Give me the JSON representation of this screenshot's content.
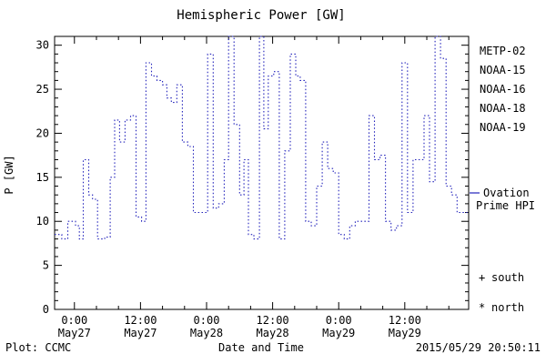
{
  "header": {
    "title": "Hemispheric Power [GW]"
  },
  "footer": {
    "plot_credit": "Plot: CCMC",
    "timestamp": "2015/05/29 20:50:11"
  },
  "chart_data": {
    "type": "line",
    "subtype": "step",
    "title": "Hemispheric Power [GW]",
    "xlabel": "Date and Time",
    "ylabel": "P [GW]",
    "ylim": [
      0,
      31
    ],
    "y_major_ticks": [
      0,
      5,
      10,
      15,
      20,
      25,
      30
    ],
    "y_minor_step": 1,
    "x_range_hours": [
      -3.6,
      71.6
    ],
    "x_major_ticks": [
      {
        "t": 0,
        "time": "0:00",
        "date": "May27"
      },
      {
        "t": 12,
        "time": "12:00",
        "date": "May27"
      },
      {
        "t": 24,
        "time": "0:00",
        "date": "May28"
      },
      {
        "t": 36,
        "time": "12:00",
        "date": "May28"
      },
      {
        "t": 48,
        "time": "0:00",
        "date": "May29"
      },
      {
        "t": 60,
        "time": "12:00",
        "date": "May29"
      }
    ],
    "x_minor_step_hours": 4,
    "grid": false,
    "legend_position": "right-outside",
    "line_color": "#2222bb",
    "line_style": "dotted",
    "series": [
      {
        "name": "Ovation Prime HPI",
        "color": "#2222bb",
        "steps": [
          [
            -3.6,
            8.5
          ],
          [
            -2.3,
            8
          ],
          [
            -1.2,
            10
          ],
          [
            0.2,
            9.5
          ],
          [
            0.9,
            8
          ],
          [
            1.6,
            17
          ],
          [
            2.6,
            13
          ],
          [
            3.3,
            12.5
          ],
          [
            4.2,
            8
          ],
          [
            5.5,
            8.2
          ],
          [
            6.5,
            15
          ],
          [
            7.3,
            21.5
          ],
          [
            8.2,
            19
          ],
          [
            9.2,
            21.5
          ],
          [
            10.2,
            22
          ],
          [
            11.2,
            10.5
          ],
          [
            12.2,
            10
          ],
          [
            13.0,
            28
          ],
          [
            14.0,
            26.5
          ],
          [
            15.0,
            26
          ],
          [
            16.0,
            25.5
          ],
          [
            16.8,
            24
          ],
          [
            17.6,
            23.5
          ],
          [
            18.6,
            25.5
          ],
          [
            19.6,
            19
          ],
          [
            20.6,
            18.5
          ],
          [
            21.6,
            11
          ],
          [
            23.0,
            11
          ],
          [
            24.2,
            29
          ],
          [
            25.2,
            11.5
          ],
          [
            26.2,
            12
          ],
          [
            27.2,
            17
          ],
          [
            28.0,
            31
          ],
          [
            29.0,
            21
          ],
          [
            30.0,
            13
          ],
          [
            30.8,
            17
          ],
          [
            31.6,
            8.5
          ],
          [
            32.6,
            8
          ],
          [
            33.6,
            31
          ],
          [
            34.4,
            20.5
          ],
          [
            35.2,
            26.5
          ],
          [
            36.2,
            27
          ],
          [
            37.2,
            8
          ],
          [
            38.2,
            18
          ],
          [
            39.2,
            29
          ],
          [
            40.2,
            26.5
          ],
          [
            41.0,
            26
          ],
          [
            42.0,
            10
          ],
          [
            43.0,
            9.5
          ],
          [
            44.0,
            14
          ],
          [
            45.0,
            19
          ],
          [
            46.0,
            16
          ],
          [
            47.0,
            15.5
          ],
          [
            48.0,
            8.5
          ],
          [
            49.0,
            8
          ],
          [
            50.0,
            9.5
          ],
          [
            51.0,
            10
          ],
          [
            52.5,
            10
          ],
          [
            53.5,
            22
          ],
          [
            54.5,
            17
          ],
          [
            55.5,
            17.5
          ],
          [
            56.5,
            10
          ],
          [
            57.5,
            9
          ],
          [
            58.5,
            9.5
          ],
          [
            59.5,
            28
          ],
          [
            60.5,
            11
          ],
          [
            61.5,
            17
          ],
          [
            62.5,
            17
          ],
          [
            63.5,
            22
          ],
          [
            64.5,
            14.5
          ],
          [
            65.5,
            31
          ],
          [
            66.5,
            28.5
          ],
          [
            67.5,
            14
          ],
          [
            68.5,
            13
          ],
          [
            69.5,
            11
          ],
          [
            71.6,
            11
          ]
        ]
      }
    ],
    "legend_satellites": [
      {
        "label": "METP-02",
        "color": "#000000"
      },
      {
        "label": "NOAA-15",
        "color": "#2222bb"
      },
      {
        "label": "NOAA-16",
        "color": "#33cccc"
      },
      {
        "label": "NOAA-18",
        "color": "#66cc77"
      },
      {
        "label": "NOAA-19",
        "color": "#ff9933"
      }
    ],
    "legend_line": {
      "label_line1": "Ovation",
      "label_line2": "Prime HPI",
      "color": "#2222bb"
    },
    "markers": [
      {
        "symbol": "+",
        "label": "south"
      },
      {
        "symbol": "*",
        "label": "north"
      }
    ]
  }
}
